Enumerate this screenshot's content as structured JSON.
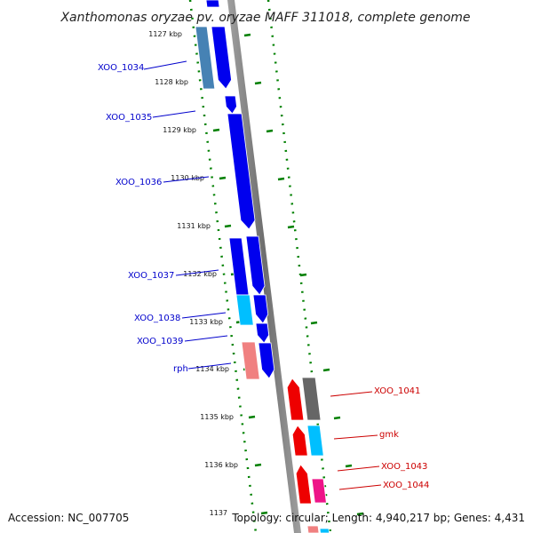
{
  "title": "Xanthomonas oryzae pv. oryzae MAFF 311018, complete genome",
  "accession": "Accession: NC_007705",
  "summary": "Topology: circular; Length: 4,940,217 bp; Genes: 4,431",
  "colors": {
    "forward": "#0000ee",
    "forward_light": "#00bfff",
    "forward_steel": "#4682b4",
    "rna": "#f08080",
    "reverse": "#ee0000",
    "reverse_gray": "#666666",
    "reverse_pink": "#ee1488",
    "backbone": "#808080",
    "ticks": "#008000",
    "forward_label": "#0000cc",
    "reverse_label": "#cc0000"
  },
  "ticks": [
    {
      "label": "1127 kbp"
    },
    {
      "label": "1128 kbp"
    },
    {
      "label": "1129 kbp"
    },
    {
      "label": "1130 kbp"
    },
    {
      "label": "1131 kbp"
    },
    {
      "label": "1132 kbp"
    },
    {
      "label": "1133 kbp"
    },
    {
      "label": "1134 kbp"
    },
    {
      "label": "1135 kbp"
    },
    {
      "label": "1136 kbp"
    },
    {
      "label": "1137"
    }
  ],
  "forward_labels": [
    {
      "label": "XOO_1034"
    },
    {
      "label": "XOO_1035"
    },
    {
      "label": "XOO_1036"
    },
    {
      "label": "XOO_1037"
    },
    {
      "label": "XOO_1038"
    },
    {
      "label": "XOO_1039"
    },
    {
      "label": "rph"
    }
  ],
  "reverse_labels": [
    {
      "label": "XOO_1041"
    },
    {
      "label": "gmk"
    },
    {
      "label": "XOO_1043"
    },
    {
      "label": "XOO_1044"
    }
  ]
}
